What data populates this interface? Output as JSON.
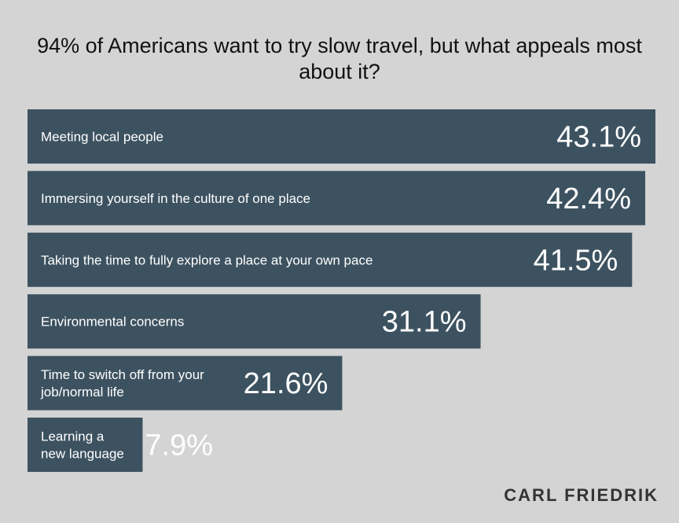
{
  "chart_data": {
    "type": "bar",
    "orientation": "horizontal",
    "title": "94% of Americans want to try slow travel, but what appeals most about it?",
    "categories": [
      [
        "Meeting local people"
      ],
      [
        "Immersing yourself in the culture of one place"
      ],
      [
        "Taking the time to fully explore a place at your own pace"
      ],
      [
        "Environmental concerns"
      ],
      [
        "Time to switch off from your",
        "job/normal life"
      ],
      [
        "Learning a",
        "new language"
      ]
    ],
    "values": [
      43.1,
      42.4,
      41.5,
      31.1,
      21.6,
      7.9
    ],
    "value_labels": [
      "43.1%",
      "42.4%",
      "41.5%",
      "31.1%",
      "21.6%",
      "7.9%"
    ],
    "unit": "%",
    "xlim": [
      0,
      43.1
    ],
    "grid": false,
    "bar_color": "#3d5260",
    "background_color": "#d4d4d4"
  },
  "brand": "CARL FRIEDRIK"
}
